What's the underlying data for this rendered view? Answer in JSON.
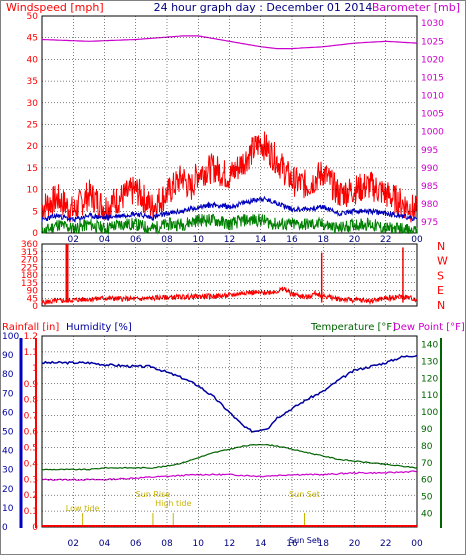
{
  "header": {
    "title": "24 hour graph day : December 01 2014",
    "left_label": "Windspeed [mph]",
    "right_label": "Barometer [mb]"
  },
  "colors": {
    "wind": "#ff0000",
    "wind_avg": "#0000c0",
    "wind_green": "#008000",
    "barometer": "#cc00cc",
    "dir": "#ff0000",
    "humidity": "#0000a0",
    "temperature": "#006400",
    "dewpoint": "#cc00cc",
    "rain": "#ff0000",
    "events": "#c8b400",
    "grid": "#000000"
  },
  "chart_data": [
    {
      "type": "line",
      "name": "wind-barometer",
      "ylabel": "Windspeed [mph]",
      "y2label": "Barometer [mb]",
      "x_ticks": [
        "02",
        "04",
        "06",
        "08",
        "10",
        "12",
        "14",
        "16",
        "18",
        "20",
        "22",
        "00"
      ],
      "ylim": [
        0,
        50
      ],
      "y_ticks": [
        0,
        5,
        10,
        15,
        20,
        25,
        30,
        35,
        40,
        45,
        50
      ],
      "y2lim": [
        972,
        1032
      ],
      "y2_ticks": [
        975,
        980,
        985,
        990,
        995,
        1000,
        1005,
        1010,
        1015,
        1020,
        1025,
        1030
      ],
      "series": [
        {
          "key": "gust",
          "x": [
            0,
            1,
            2,
            3,
            4,
            5,
            6,
            7,
            8,
            9,
            9.5,
            10,
            11,
            12,
            13,
            14,
            14.5,
            15,
            16,
            17,
            18,
            19,
            20,
            21,
            22,
            23,
            24
          ],
          "values": [
            6,
            8,
            5,
            9,
            6,
            8,
            10,
            6,
            9,
            13,
            10,
            14,
            15,
            13,
            17,
            21,
            19,
            17,
            12,
            11,
            14,
            9,
            10,
            11,
            9,
            7,
            5
          ]
        },
        {
          "key": "average",
          "x": [
            0,
            1,
            2,
            3,
            4,
            5,
            6,
            7,
            8,
            9,
            10,
            11,
            12,
            13,
            14,
            15,
            16,
            17,
            18,
            19,
            20,
            21,
            22,
            23,
            24
          ],
          "values": [
            3,
            4,
            3,
            4,
            3.5,
            4,
            4.5,
            3.5,
            4.5,
            5,
            6,
            6.5,
            6,
            7,
            8,
            7,
            5.5,
            5.5,
            6,
            4.5,
            5,
            5,
            4.5,
            4,
            3
          ]
        },
        {
          "key": "low",
          "x": [
            0,
            1,
            2,
            3,
            4,
            5,
            6,
            7,
            8,
            9,
            10,
            11,
            12,
            13,
            14,
            15,
            16,
            17,
            18,
            19,
            20,
            21,
            22,
            23,
            24
          ],
          "values": [
            0,
            2,
            1,
            2,
            1,
            2,
            2,
            1,
            2,
            2,
            3,
            3,
            2,
            3,
            3,
            2,
            2,
            2,
            2,
            1,
            2,
            2,
            1,
            1,
            0
          ]
        },
        {
          "key": "barometer",
          "x": [
            0,
            3,
            6,
            9,
            10,
            12,
            14,
            15,
            16,
            18,
            20,
            22,
            24
          ],
          "values": [
            1025.5,
            1025,
            1025.5,
            1026.5,
            1026.5,
            1025,
            1023.5,
            1023,
            1023,
            1023.5,
            1024.5,
            1025,
            1024.5
          ]
        }
      ]
    },
    {
      "type": "line",
      "name": "wind-direction",
      "x_ticks": [],
      "ylim": [
        0,
        360
      ],
      "y_ticks": [
        0,
        45,
        90,
        135,
        180,
        225,
        270,
        315,
        360
      ],
      "compass": [
        "N",
        "W",
        "S",
        "E",
        "N"
      ],
      "series": [
        {
          "key": "direction",
          "x": [
            0,
            1,
            2,
            4,
            6,
            8,
            10,
            12,
            13,
            14,
            15,
            15.5,
            16,
            17,
            17.5,
            18,
            19,
            20,
            21,
            22,
            23,
            24
          ],
          "values": [
            20,
            30,
            35,
            45,
            40,
            50,
            55,
            60,
            80,
            75,
            85,
            100,
            70,
            50,
            75,
            60,
            40,
            35,
            30,
            45,
            55,
            40
          ]
        },
        {
          "key": "spikes",
          "x": [
            1.6,
            17.9,
            23.1
          ],
          "values": [
            360,
            310,
            340
          ]
        }
      ]
    },
    {
      "type": "line",
      "name": "rain-humidity-temperature",
      "ylabel": "Rainfall [in]",
      "ylabel2": "Humidity [%]",
      "y2label": "Temperature [°F]",
      "y2label2": "Dew Point [°F]",
      "x_ticks": [
        "02",
        "04",
        "06",
        "08",
        "10",
        "12",
        "14",
        "16",
        "18",
        "20",
        "22",
        "00"
      ],
      "humidity_lim": [
        0,
        100
      ],
      "humidity_ticks": [
        0,
        10,
        20,
        30,
        40,
        50,
        60,
        70,
        80,
        90,
        100
      ],
      "rain_lim": [
        0,
        1.2
      ],
      "rain_ticks": [
        "0",
        "0.1",
        "0.2",
        "0.3",
        "0.4",
        "0.5",
        "0.6",
        "0.7",
        "0.8",
        "0.9",
        "1",
        "1.1",
        "1.2"
      ],
      "temp_lim": [
        32,
        145
      ],
      "temp_ticks": [
        40,
        50,
        60,
        70,
        80,
        90,
        100,
        110,
        120,
        130,
        140
      ],
      "series": [
        {
          "key": "humidity",
          "x": [
            0,
            1,
            3,
            4,
            6,
            7,
            8,
            9,
            10,
            11,
            12,
            13,
            13.5,
            14,
            14.5,
            15,
            16,
            17,
            18,
            19,
            20,
            21,
            22,
            23,
            24
          ],
          "values": [
            86,
            86,
            86,
            85,
            84,
            84,
            81,
            78,
            74,
            68,
            60,
            52,
            50,
            51,
            52,
            57,
            62,
            67,
            71,
            77,
            82,
            84,
            86,
            89,
            90
          ]
        },
        {
          "key": "temperature",
          "x": [
            0,
            1,
            3,
            4,
            6,
            7,
            8,
            9,
            10,
            11,
            12,
            13,
            14,
            15,
            16,
            17,
            18,
            19,
            20,
            21,
            22,
            23,
            24
          ],
          "values": [
            66,
            66,
            66,
            67,
            67,
            67,
            68,
            70,
            73,
            76,
            78,
            80,
            81,
            80,
            78,
            76,
            74,
            72,
            71,
            70,
            69,
            68,
            67
          ]
        },
        {
          "key": "dewpoint",
          "x": [
            0,
            2,
            4,
            6,
            8,
            10,
            12,
            14,
            16,
            18,
            20,
            22,
            24
          ],
          "values": [
            60,
            60,
            60,
            61,
            62,
            63,
            63,
            62,
            63,
            63,
            64,
            64,
            65
          ]
        }
      ],
      "events": [
        {
          "label": "Low tide",
          "hour": 2.6
        },
        {
          "label": "Sun Rise",
          "hour": 7.1
        },
        {
          "label": "High tide",
          "hour": 8.4
        },
        {
          "label": "Sun Set",
          "hour": 16.8
        },
        {
          "label": "Sun Set",
          "hour": 16.8
        }
      ]
    }
  ],
  "lower": {
    "rain_label": "Rainfall [in]",
    "humidity_label": "Humidity [%]",
    "temp_label": "Temperature [°F]",
    "dew_label": "Dew Point [°F]"
  }
}
